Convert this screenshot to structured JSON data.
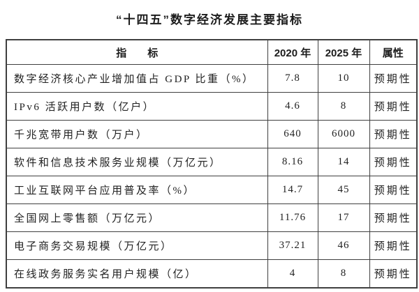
{
  "title": "“十四五”数字经济发展主要指标",
  "table": {
    "headers": {
      "indicator": "指　　标",
      "y2020": "2020 年",
      "y2025": "2025 年",
      "attr": "属性"
    },
    "rows": [
      {
        "indicator": "数字经济核心产业增加值占 GDP 比重（%）",
        "y2020": "7.8",
        "y2025": "10",
        "attr": "预期性"
      },
      {
        "indicator": "IPv6 活跃用户数（亿户）",
        "y2020": "4.6",
        "y2025": "8",
        "attr": "预期性"
      },
      {
        "indicator": "千兆宽带用户数（万户）",
        "y2020": "640",
        "y2025": "6000",
        "attr": "预期性"
      },
      {
        "indicator": "软件和信息技术服务业规模（万亿元）",
        "y2020": "8.16",
        "y2025": "14",
        "attr": "预期性"
      },
      {
        "indicator": "工业互联网平台应用普及率（%）",
        "y2020": "14.7",
        "y2025": "45",
        "attr": "预期性"
      },
      {
        "indicator": "全国网上零售额（万亿元）",
        "y2020": "11.76",
        "y2025": "17",
        "attr": "预期性"
      },
      {
        "indicator": "电子商务交易规模（万亿元）",
        "y2020": "37.21",
        "y2025": "46",
        "attr": "预期性"
      },
      {
        "indicator": "在线政务服务实名用户规模（亿）",
        "y2020": "4",
        "y2025": "8",
        "attr": "预期性"
      }
    ]
  },
  "colors": {
    "background": "#ffffff",
    "text": "#222222",
    "border": "#3f3f3f"
  }
}
